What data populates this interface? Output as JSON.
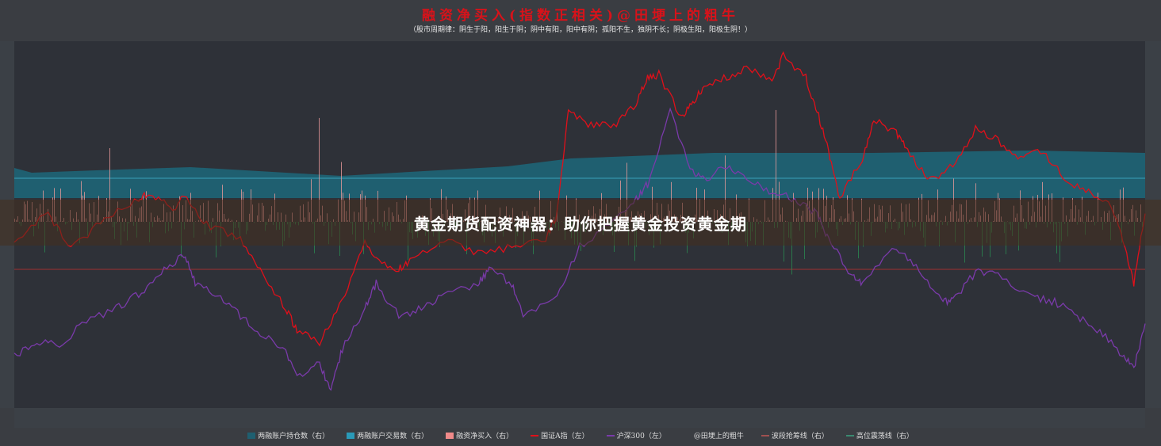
{
  "chart_data": {
    "type": "line",
    "title": "融资净买入(指数正相关)@田埂上的粗牛",
    "subtitle": "（股市周期律：阴生于阳，阳生于阴；阴中有阳，阳中有阴；孤阳不生，独阴不长；阴极生阳，阳极生阴！）",
    "legend_position": "bottom",
    "grid": false,
    "ylim": [
      0,
      100
    ],
    "x_unit": "time (% of range)",
    "legend": [
      {
        "name": "两融账户持仓数（右）",
        "color": "#1f5f70",
        "kind": "area"
      },
      {
        "name": "两融账户交易数（右）",
        "color": "#2a9ab8",
        "kind": "area"
      },
      {
        "name": "融资净买入（右）",
        "color": "#f08a8a",
        "kind": "bar"
      },
      {
        "name": "国证A指（左）",
        "color": "#e0101a",
        "kind": "line"
      },
      {
        "name": "沪深300（左）",
        "color": "#7a3aaa",
        "kind": "line"
      },
      {
        "name": "@田埂上的粗牛",
        "color": "#3a3d42",
        "kind": "text"
      },
      {
        "name": "波段抢筹线（右）",
        "color": "#a05050",
        "kind": "line"
      },
      {
        "name": "高位震荡线（右）",
        "color": "#3a8a70",
        "kind": "line"
      }
    ],
    "series": [
      {
        "name": "国证A指（左）",
        "color": "#e0101a",
        "x": [
          0,
          3,
          5,
          8,
          11,
          12,
          14,
          15,
          17,
          20,
          22,
          24,
          25,
          27,
          29,
          31,
          32,
          34,
          35,
          38,
          41,
          44,
          47,
          48,
          49,
          51,
          53,
          55,
          56,
          57,
          59,
          60,
          61,
          63,
          65,
          67,
          68,
          70,
          71,
          72,
          73,
          75,
          76,
          78,
          79,
          81,
          83,
          85,
          87,
          89,
          91,
          93,
          95,
          97,
          98,
          99,
          100
        ],
        "values": [
          46,
          53,
          43,
          52,
          57,
          59,
          54,
          58,
          50,
          46,
          36,
          27,
          21,
          18,
          29,
          46,
          40,
          38,
          40,
          46,
          42,
          44,
          46,
          53,
          81,
          77,
          77,
          83,
          90,
          91,
          79,
          83,
          88,
          90,
          93,
          89,
          96,
          90,
          81,
          70,
          57,
          68,
          79,
          75,
          70,
          62,
          66,
          76,
          73,
          68,
          70,
          62,
          59,
          55,
          46,
          34,
          53
        ]
      },
      {
        "name": "沪深300（左）",
        "color": "#7a3aaa",
        "x": [
          0,
          2,
          4,
          6,
          9,
          11,
          13,
          15,
          16,
          18,
          20,
          22,
          24,
          25,
          27,
          28,
          29,
          31,
          32,
          34,
          36,
          38,
          41,
          42,
          44,
          45,
          48,
          50,
          53,
          55,
          56,
          58,
          60,
          61,
          63,
          65,
          67,
          69,
          71,
          72,
          74,
          75,
          78,
          80,
          82,
          83,
          85,
          87,
          90,
          92,
          94,
          96,
          98,
          99,
          100
        ],
        "values": [
          14,
          18,
          17,
          23,
          27,
          31,
          37,
          42,
          34,
          31,
          25,
          20,
          16,
          8,
          12,
          5,
          16,
          27,
          34,
          25,
          27,
          31,
          34,
          38,
          34,
          25,
          31,
          44,
          51,
          57,
          61,
          81,
          64,
          62,
          66,
          62,
          59,
          57,
          53,
          46,
          36,
          34,
          44,
          38,
          29,
          29,
          37,
          36,
          30,
          29,
          25,
          21,
          14,
          11,
          23
        ]
      }
    ]
  },
  "banner": "黄金期货配资神器：助你把握黄金投资黄金期"
}
